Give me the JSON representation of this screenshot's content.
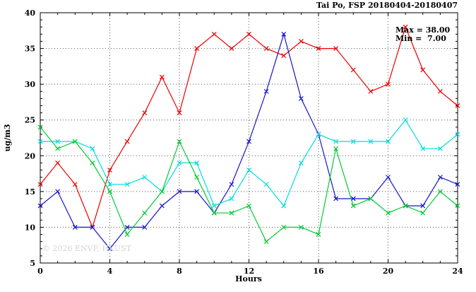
{
  "chart_data": {
    "type": "line",
    "title": "Tai Po, FSP 20180404-20180407",
    "xlabel": "Hours",
    "ylabel": "ug/m3",
    "xlim": [
      0,
      24
    ],
    "ylim": [
      5,
      40
    ],
    "xticks": [
      0,
      4,
      8,
      12,
      16,
      20,
      24
    ],
    "yticks": [
      5,
      10,
      15,
      20,
      25,
      30,
      35,
      40
    ],
    "grid": true,
    "legend_position": "none",
    "marker": "x",
    "annotations": {
      "max_label": "Max = 38.00",
      "min_label": "Min =  7.00"
    },
    "watermark": "© 2026 ENVF, HKUST",
    "x": [
      0,
      1,
      2,
      3,
      4,
      5,
      6,
      7,
      8,
      9,
      10,
      11,
      12,
      13,
      14,
      15,
      16,
      17,
      18,
      19,
      20,
      21,
      22,
      23,
      24
    ],
    "series": [
      {
        "name": "series-red",
        "color": "#ee0000",
        "values": [
          16,
          19,
          16,
          10,
          18,
          22,
          26,
          31,
          26,
          35,
          37,
          35,
          37,
          35,
          34,
          36,
          35,
          35,
          32,
          29,
          30,
          38,
          32,
          29,
          27
        ]
      },
      {
        "name": "series-blue",
        "color": "#1515cc",
        "values": [
          13,
          15,
          10,
          10,
          7,
          10,
          10,
          13,
          15,
          15,
          12,
          16,
          22,
          29,
          37,
          28,
          23,
          14,
          14,
          14,
          17,
          13,
          13,
          17,
          16
        ]
      },
      {
        "name": "series-cyan",
        "color": "#00dddd",
        "values": [
          22,
          22,
          22,
          21,
          16,
          16,
          17,
          15,
          19,
          19,
          13,
          14,
          18,
          16,
          13,
          19,
          23,
          22,
          22,
          22,
          22,
          25,
          21,
          21,
          23
        ]
      },
      {
        "name": "series-green",
        "color": "#00cc33",
        "values": [
          24,
          21,
          22,
          19,
          15,
          9,
          12,
          15,
          22,
          17,
          12,
          12,
          13,
          8,
          10,
          10,
          9,
          21,
          13,
          14,
          12,
          13,
          12,
          15,
          13
        ]
      }
    ]
  }
}
